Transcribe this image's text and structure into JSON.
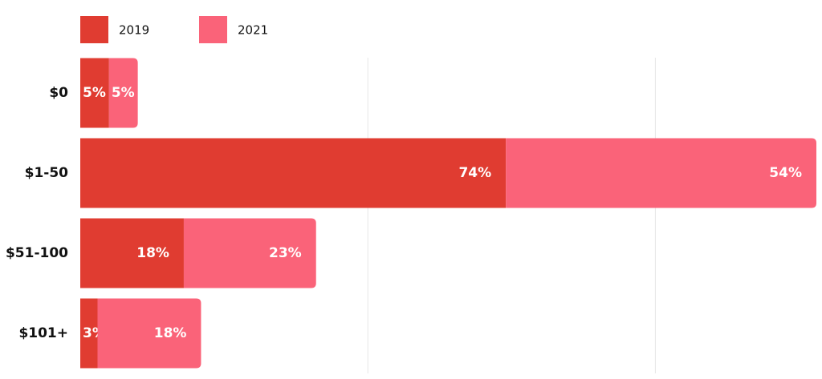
{
  "chart_data": {
    "type": "stacked-bar-horizontal",
    "categories": [
      "$0",
      "$1-50",
      "$51-100",
      "$101+"
    ],
    "series": [
      {
        "name": "2019",
        "color": "#e03c31",
        "values": [
          5,
          74,
          18,
          3
        ],
        "value_labels": [
          "5%",
          "74%",
          "18%",
          "3%"
        ]
      },
      {
        "name": "2021",
        "color": "#fa6379",
        "values": [
          5,
          54,
          23,
          18
        ],
        "value_labels": [
          "5%",
          "54%",
          "23%",
          "18%"
        ]
      }
    ],
    "xlim": [
      0,
      128
    ],
    "xgrid": [
      50,
      100
    ],
    "legend": "top-left"
  }
}
